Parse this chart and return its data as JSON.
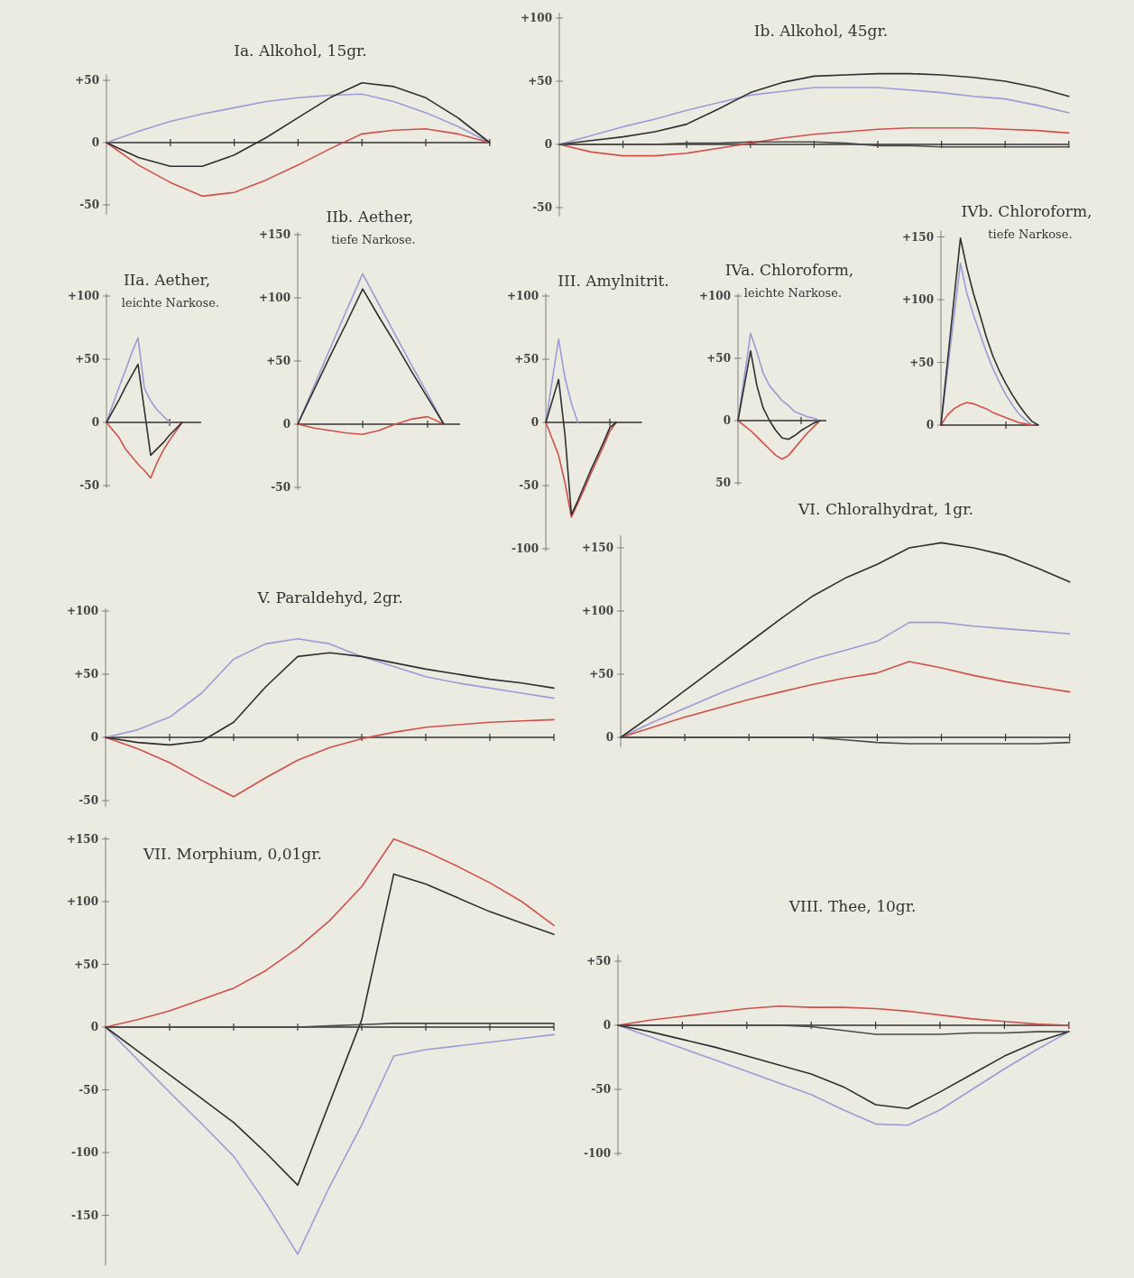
{
  "chart_data": [
    {
      "type": "line",
      "title": "Ia. Alkohol, 15gr.",
      "categories": [
        null,
        null,
        null,
        null,
        null,
        null,
        null,
        null,
        null,
        null,
        null,
        null,
        null
      ],
      "ylim": [
        -58,
        55
      ],
      "yticks": [
        -50,
        0,
        {
          "value": 50,
          "label": "+50"
        }
      ],
      "series": [
        {
          "color": "#9b9bd6",
          "values": [
            0,
            9,
            17,
            23,
            28,
            33,
            36,
            38,
            39,
            33,
            24,
            13,
            0
          ]
        },
        {
          "color": "#d0504a",
          "values": [
            0,
            -18,
            -32,
            -43,
            -40,
            -30,
            -18,
            -5,
            7,
            10,
            11,
            7,
            0
          ]
        },
        {
          "color": "#2f2f2f",
          "values": [
            0,
            -12,
            -19,
            -19,
            -10,
            4,
            20,
            36,
            48,
            45,
            36,
            20,
            0
          ]
        }
      ]
    },
    {
      "type": "line",
      "title": "Ib. Alkohol, 45gr.",
      "categories": [
        null,
        null,
        null,
        null,
        null,
        null,
        null,
        null,
        null,
        null,
        null,
        null,
        null,
        null,
        null,
        null,
        null
      ],
      "ylim": [
        -57,
        104
      ],
      "yticks": [
        -50,
        0,
        {
          "value": 50,
          "label": "+50"
        },
        {
          "value": 100,
          "label": "+100"
        }
      ],
      "series": [
        {
          "color": "#9b9bd6",
          "values": [
            0,
            7,
            14,
            20,
            27,
            33,
            39,
            42,
            45,
            45,
            45,
            43,
            41,
            38,
            36,
            31,
            25
          ]
        },
        {
          "color": "#d0504a",
          "values": [
            0,
            -6,
            -9,
            -9,
            -7,
            -3,
            1,
            5,
            8,
            10,
            12,
            13,
            13,
            13,
            12,
            11,
            9
          ]
        },
        {
          "color": "#2f2f2f",
          "values": [
            0,
            3,
            6,
            10,
            16,
            28,
            41,
            49,
            54,
            55,
            56,
            56,
            55,
            53,
            50,
            45,
            38
          ]
        },
        {
          "color": "#4a4a4a",
          "values": [
            0,
            0,
            0,
            0,
            1,
            1,
            2,
            2,
            2,
            1,
            -1,
            -1,
            -2,
            -2,
            -2,
            -2,
            -2
          ]
        }
      ]
    },
    {
      "type": "line",
      "title": "IIa. Aether,",
      "subtitle": "leichte Narkose.",
      "categories": [
        null,
        null,
        null,
        null,
        null,
        null,
        null,
        null,
        null,
        null,
        null,
        null,
        null,
        null,
        null,
        null
      ],
      "ylim": [
        -52,
        102
      ],
      "yticks": [
        -50,
        0,
        {
          "value": 50,
          "label": "+50"
        },
        {
          "value": 100,
          "label": "+100"
        }
      ],
      "series": [
        {
          "color": "#9b9bd6",
          "values": [
            0,
            14,
            28,
            41,
            55,
            67,
            27,
            17,
            10,
            5,
            0,
            null,
            null,
            null,
            null,
            null
          ]
        },
        {
          "color": "#d0504a",
          "values": [
            0,
            -6,
            -12,
            -21,
            -27,
            -33,
            -38,
            -44,
            -32,
            -22,
            -14,
            -7,
            0,
            null,
            null,
            null
          ]
        },
        {
          "color": "#2f2f2f",
          "values": [
            0,
            9,
            18,
            28,
            37,
            46,
            10,
            -26,
            -21,
            -16,
            -10,
            -5,
            0,
            null,
            null,
            null
          ]
        }
      ]
    },
    {
      "type": "line",
      "title": "IIb. Aether,",
      "subtitle": "tiefe Narkose.",
      "categories": [
        null,
        null,
        null,
        null,
        null,
        null,
        null,
        null,
        null,
        null,
        null
      ],
      "ylim": [
        -52,
        152
      ],
      "yticks": [
        -50,
        0,
        {
          "value": 50,
          "label": "+50"
        },
        {
          "value": 100,
          "label": "+100"
        },
        {
          "value": 150,
          "label": "+150"
        }
      ],
      "series": [
        {
          "color": "#9b9bd6",
          "values": [
            0,
            30,
            60,
            90,
            119,
            95,
            71,
            47,
            24,
            0,
            null
          ]
        },
        {
          "color": "#d0504a",
          "values": [
            0,
            -3,
            -5,
            -7,
            -8,
            -5,
            0,
            4,
            6,
            0,
            null
          ]
        },
        {
          "color": "#2f2f2f",
          "values": [
            0,
            27,
            54,
            80,
            107,
            85,
            64,
            42,
            21,
            0,
            null
          ]
        }
      ]
    },
    {
      "type": "line",
      "title": "III. Amylnitrit.",
      "categories": [
        null,
        null,
        null,
        null,
        null,
        null,
        null,
        null,
        null,
        null,
        null,
        null,
        null,
        null,
        null,
        null
      ],
      "ylim": [
        -102,
        102
      ],
      "yticks": [
        -100,
        -50,
        0,
        {
          "value": 50,
          "label": "+50"
        },
        {
          "value": 100,
          "label": "+100"
        }
      ],
      "series": [
        {
          "color": "#9b9bd6",
          "values": [
            0,
            33,
            66,
            35,
            15,
            0,
            null,
            null,
            null,
            null,
            null,
            null,
            null,
            null,
            null,
            null
          ]
        },
        {
          "color": "#d0504a",
          "values": [
            0,
            -13,
            -26,
            -48,
            -75,
            -64,
            -53,
            -41,
            -30,
            -19,
            -7,
            0,
            null,
            null,
            null,
            null
          ]
        },
        {
          "color": "#2f2f2f",
          "values": [
            0,
            17,
            34,
            -10,
            -73,
            -62,
            -50,
            -38,
            -27,
            -16,
            -4,
            0,
            null,
            null,
            null,
            null
          ]
        }
      ]
    },
    {
      "type": "line",
      "title": "IVa. Chloroform,",
      "subtitle": "leichte Narkose.",
      "categories": [
        null,
        null,
        null,
        null,
        null,
        null,
        null,
        null,
        null,
        null,
        null,
        null,
        null,
        null,
        null
      ],
      "ylim": [
        -52,
        102
      ],
      "yticks": [
        {
          "value": -50,
          "label": "50"
        },
        0,
        {
          "value": 50,
          "label": "+50"
        },
        {
          "value": 100,
          "label": "+100"
        }
      ],
      "series": [
        {
          "color": "#9b9bd6",
          "values": [
            0,
            35,
            70,
            55,
            38,
            28,
            22,
            16,
            12,
            7,
            5,
            3,
            2,
            0,
            null
          ]
        },
        {
          "color": "#d0504a",
          "values": [
            0,
            -4,
            -8,
            -13,
            -18,
            -23,
            -28,
            -31,
            -28,
            -22,
            -16,
            -10,
            -5,
            0,
            null
          ]
        },
        {
          "color": "#2f2f2f",
          "values": [
            0,
            28,
            56,
            28,
            10,
            0,
            -8,
            -14,
            -15,
            -12,
            -8,
            -5,
            -2,
            0,
            null
          ]
        }
      ]
    },
    {
      "type": "line",
      "title": "IVb. Chloroform,",
      "subtitle": "tiefe Narkose.",
      "categories": [
        null,
        null,
        null,
        null,
        null,
        null,
        null,
        null,
        null,
        null,
        null,
        null,
        null,
        null,
        null,
        null
      ],
      "ylim": [
        0,
        155
      ],
      "yticks": [
        0,
        {
          "value": 50,
          "label": "+50"
        },
        {
          "value": 100,
          "label": "+100"
        },
        {
          "value": 150,
          "label": "+150"
        }
      ],
      "series": [
        {
          "color": "#9b9bd6",
          "values": [
            0,
            43,
            86,
            129,
            105,
            88,
            73,
            58,
            45,
            34,
            24,
            16,
            9,
            4,
            0,
            null
          ]
        },
        {
          "color": "#d0504a",
          "values": [
            0,
            8,
            13,
            16,
            18,
            17,
            15,
            13,
            10,
            8,
            6,
            4,
            2,
            1,
            0,
            null
          ]
        },
        {
          "color": "#2f2f2f",
          "values": [
            0,
            50,
            100,
            149,
            125,
            105,
            88,
            70,
            55,
            43,
            33,
            24,
            16,
            9,
            3,
            0
          ]
        }
      ]
    },
    {
      "type": "line",
      "title": "V. Paraldehyd, 2gr.",
      "categories": [
        null,
        null,
        null,
        null,
        null,
        null,
        null,
        null,
        null,
        null,
        null,
        null,
        null,
        null,
        null
      ],
      "ylim": [
        -55,
        102
      ],
      "yticks": [
        -50,
        0,
        {
          "value": 50,
          "label": "+50"
        },
        {
          "value": 100,
          "label": "+100"
        }
      ],
      "series": [
        {
          "color": "#9b9bd6",
          "values": [
            0,
            6,
            16,
            35,
            62,
            74,
            78,
            74,
            64,
            56,
            48,
            43,
            39,
            35,
            31
          ]
        },
        {
          "color": "#d0504a",
          "values": [
            0,
            -9,
            -20,
            -34,
            -47,
            -32,
            -18,
            -8,
            -1,
            4,
            8,
            10,
            12,
            13,
            14
          ]
        },
        {
          "color": "#2f2f2f",
          "values": [
            0,
            -4,
            -6,
            -3,
            12,
            40,
            64,
            67,
            64,
            59,
            54,
            50,
            46,
            43,
            39
          ]
        }
      ]
    },
    {
      "type": "line",
      "title": "VI. Chloralhydrat, 1gr.",
      "categories": [
        null,
        null,
        null,
        null,
        null,
        null,
        null,
        null,
        null,
        null,
        null,
        null,
        null,
        null,
        null
      ],
      "ylim": [
        -8,
        160
      ],
      "yticks": [
        0,
        {
          "value": 50,
          "label": "+50"
        },
        {
          "value": 100,
          "label": "+100"
        },
        {
          "value": 150,
          "label": "+150"
        }
      ],
      "series": [
        {
          "color": "#9b9bd6",
          "values": [
            0,
            12,
            23,
            34,
            44,
            53,
            62,
            69,
            76,
            91,
            91,
            88,
            86,
            84,
            82
          ]
        },
        {
          "color": "#d0504a",
          "values": [
            0,
            8,
            16,
            23,
            30,
            36,
            42,
            47,
            51,
            60,
            55,
            49,
            44,
            40,
            36
          ]
        },
        {
          "color": "#2f2f2f",
          "values": [
            0,
            18,
            37,
            56,
            75,
            94,
            112,
            126,
            137,
            150,
            154,
            150,
            144,
            134,
            123
          ]
        },
        {
          "color": "#4a4a4a",
          "values": [
            0,
            0,
            0,
            0,
            0,
            0,
            0,
            -2,
            -4,
            -5,
            -5,
            -5,
            -5,
            -5,
            -4
          ]
        }
      ]
    },
    {
      "type": "line",
      "title": "VII. Morphium, 0,01gr.",
      "categories": [
        null,
        null,
        null,
        null,
        null,
        null,
        null,
        null,
        null,
        null,
        null,
        null,
        null,
        null,
        null
      ],
      "ylim": [
        -190,
        152
      ],
      "yticks": [
        -150,
        -100,
        -50,
        0,
        {
          "value": 50,
          "label": "+50"
        },
        {
          "value": 100,
          "label": "+100"
        },
        {
          "value": 150,
          "label": "+150"
        }
      ],
      "series": [
        {
          "color": "#9b9bd6",
          "values": [
            0,
            -26,
            -52,
            -77,
            -103,
            -140,
            -181,
            -127,
            -78,
            -23,
            -18,
            -15,
            -12,
            -9,
            -6
          ]
        },
        {
          "color": "#d0504a",
          "values": [
            0,
            6,
            13,
            22,
            31,
            45,
            63,
            85,
            112,
            150,
            140,
            128,
            115,
            100,
            81
          ]
        },
        {
          "color": "#2f2f2f",
          "values": [
            0,
            -19,
            -38,
            -57,
            -76,
            -100,
            -126,
            -60,
            6,
            122,
            114,
            103,
            92,
            83,
            74
          ]
        },
        {
          "color": "#4a4a4a",
          "values": [
            0,
            0,
            0,
            0,
            0,
            0,
            0,
            1,
            2,
            3,
            3,
            3,
            3,
            3,
            3
          ]
        }
      ]
    },
    {
      "type": "line",
      "title": "VIII. Thee, 10gr.",
      "categories": [
        null,
        null,
        null,
        null,
        null,
        null,
        null,
        null,
        null,
        null,
        null,
        null,
        null,
        null,
        null
      ],
      "ylim": [
        -102,
        55
      ],
      "yticks": [
        -100,
        -50,
        0,
        {
          "value": 50,
          "label": "+50"
        }
      ],
      "series": [
        {
          "color": "#9b9bd6",
          "values": [
            0,
            -9,
            -18,
            -27,
            -36,
            -45,
            -54,
            -66,
            -77,
            -78,
            -66,
            -50,
            -34,
            -19,
            -5
          ]
        },
        {
          "color": "#d0504a",
          "values": [
            0,
            4,
            7,
            10,
            13,
            15,
            14,
            14,
            13,
            11,
            8,
            5,
            3,
            1,
            0
          ]
        },
        {
          "color": "#2f2f2f",
          "values": [
            0,
            -5,
            -11,
            -17,
            -24,
            -31,
            -38,
            -48,
            -62,
            -65,
            -52,
            -38,
            -24,
            -13,
            -5
          ]
        },
        {
          "color": "#4a4a4a",
          "values": [
            0,
            0,
            0,
            0,
            0,
            0,
            -1,
            -4,
            -7,
            -7,
            -7,
            -6,
            -6,
            -5,
            -5
          ]
        }
      ]
    }
  ]
}
